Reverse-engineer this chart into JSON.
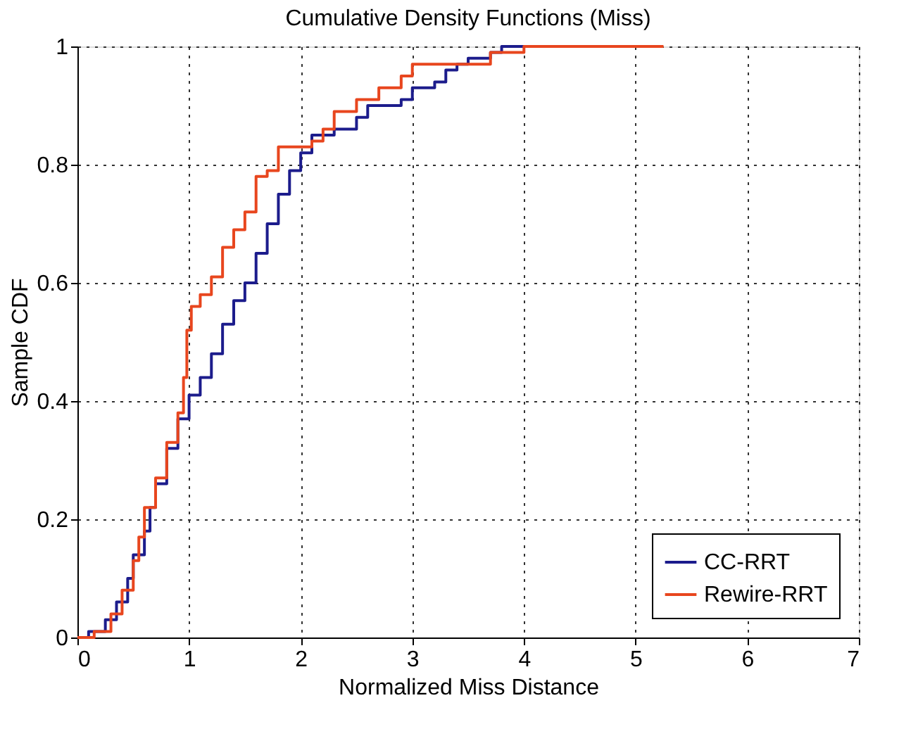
{
  "chart_data": {
    "type": "step",
    "title": "Cumulative Density Functions (Miss)",
    "xlabel": "Normalized Miss Distance",
    "ylabel": "Sample CDF",
    "xlim": [
      0,
      7
    ],
    "xticks": [
      0,
      1,
      2,
      3,
      4,
      5,
      6,
      7
    ],
    "ylim": [
      0,
      1
    ],
    "yticks": [
      0,
      0.2,
      0.4,
      0.6,
      0.8,
      1
    ],
    "grid": true,
    "legend": "bottom right",
    "line_style": "solid",
    "marker": "none",
    "series": [
      {
        "name": "CC-RRT",
        "color": "#1c1c8c",
        "x": [
          0,
          0.1,
          0.25,
          0.35,
          0.45,
          0.5,
          0.6,
          0.65,
          0.7,
          0.8,
          0.9,
          1.0,
          1.1,
          1.2,
          1.3,
          1.4,
          1.5,
          1.6,
          1.7,
          1.8,
          1.9,
          2.0,
          2.1,
          2.3,
          2.5,
          2.6,
          2.9,
          3.0,
          3.2,
          3.3,
          3.4,
          3.5,
          3.7,
          3.8,
          5.2
        ],
        "values": [
          0,
          0.01,
          0.03,
          0.06,
          0.1,
          0.14,
          0.18,
          0.22,
          0.26,
          0.32,
          0.37,
          0.41,
          0.44,
          0.48,
          0.53,
          0.57,
          0.6,
          0.65,
          0.7,
          0.75,
          0.79,
          0.82,
          0.85,
          0.86,
          0.88,
          0.9,
          0.91,
          0.93,
          0.94,
          0.96,
          0.97,
          0.98,
          0.99,
          1.0,
          1.0
        ]
      },
      {
        "name": "Rewire-RRT",
        "color": "#e8461e",
        "x": [
          0,
          0.15,
          0.3,
          0.4,
          0.5,
          0.55,
          0.6,
          0.7,
          0.8,
          0.9,
          0.95,
          0.98,
          1.02,
          1.1,
          1.2,
          1.3,
          1.4,
          1.5,
          1.6,
          1.7,
          1.8,
          2.1,
          2.2,
          2.3,
          2.5,
          2.7,
          2.9,
          3.0,
          3.6,
          3.7,
          4.0,
          5.25
        ],
        "values": [
          0,
          0.01,
          0.04,
          0.08,
          0.13,
          0.17,
          0.22,
          0.27,
          0.33,
          0.38,
          0.44,
          0.52,
          0.56,
          0.58,
          0.61,
          0.66,
          0.69,
          0.72,
          0.78,
          0.79,
          0.83,
          0.84,
          0.86,
          0.89,
          0.91,
          0.93,
          0.95,
          0.97,
          0.97,
          0.99,
          1.0,
          1.0
        ]
      }
    ]
  }
}
